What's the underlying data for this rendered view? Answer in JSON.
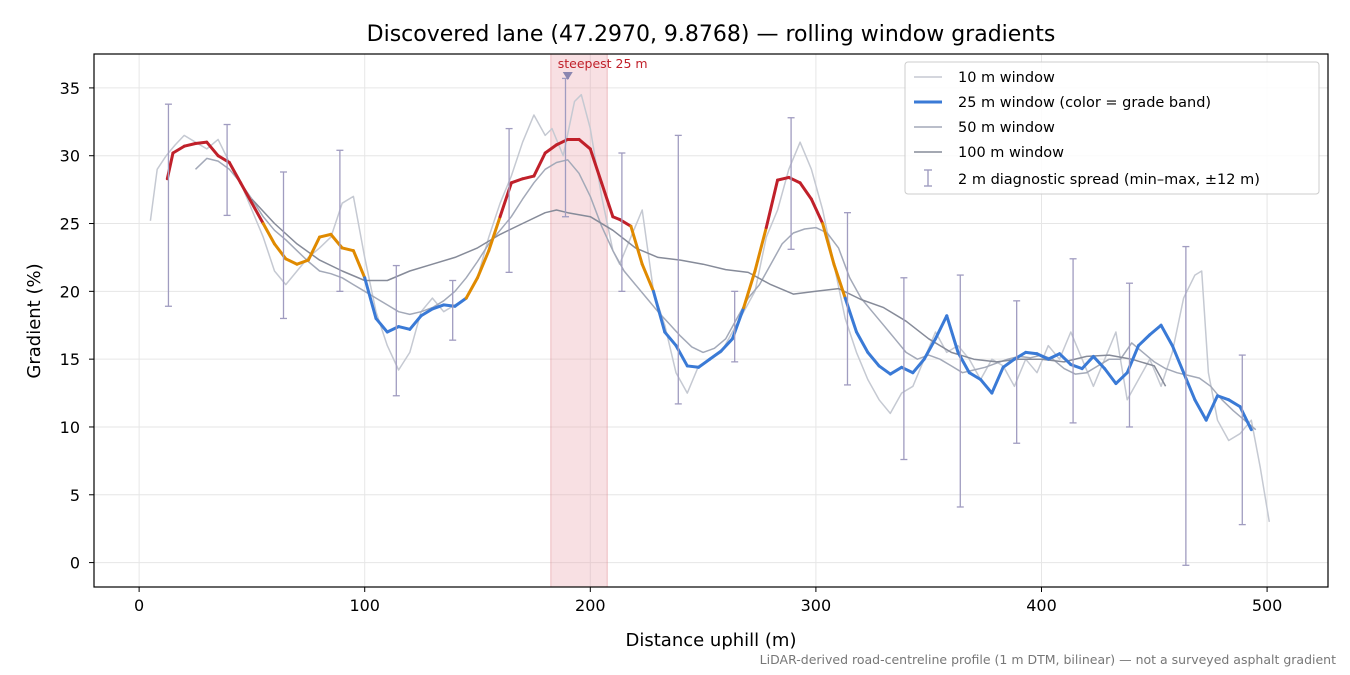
{
  "chart_data": {
    "type": "line",
    "title": "Discovered lane (47.2970, 9.8768) — rolling window gradients",
    "xlabel": "Distance uphill (m)",
    "ylabel": "Gradient (%)",
    "xlim": [
      -20,
      527
    ],
    "ylim": [
      -1.8,
      37.5
    ],
    "xticks": [
      0,
      100,
      200,
      300,
      400,
      500
    ],
    "yticks": [
      0,
      5,
      10,
      15,
      20,
      25,
      30,
      35
    ],
    "grid": true,
    "legend_position": "top-right",
    "footnote": "LiDAR-derived road-centreline profile (1 m DTM, bilinear) — not a surveyed asphalt gradient",
    "annotation": {
      "text": "steepest 25 m",
      "x_range": [
        182.5,
        207.5
      ],
      "peak_x": 190,
      "peak_y": 35.8
    },
    "grade_band_colors": {
      "low": "#3a7ad6",
      "mid": "#e08a00",
      "high": "#c0202a"
    },
    "grade_band_thresholds": [
      20,
      25
    ],
    "series": [
      {
        "name": "10 m window",
        "style": "thin",
        "color": "#c5c9d2",
        "x": [
          5,
          8,
          12,
          16,
          20,
          25,
          30,
          35,
          40,
          45,
          50,
          55,
          60,
          65,
          70,
          75,
          80,
          85,
          90,
          95,
          100,
          105,
          110,
          115,
          120,
          125,
          130,
          135,
          140,
          145,
          150,
          155,
          160,
          165,
          170,
          175,
          180,
          183,
          188,
          193,
          196,
          200,
          205,
          210,
          213,
          218,
          223,
          228,
          233,
          238,
          243,
          248,
          253,
          258,
          263,
          268,
          273,
          278,
          283,
          288,
          293,
          298,
          303,
          308,
          313,
          318,
          323,
          328,
          333,
          338,
          343,
          348,
          353,
          358,
          363,
          368,
          373,
          378,
          383,
          388,
          393,
          398,
          403,
          408,
          413,
          418,
          423,
          428,
          433,
          438,
          443,
          448,
          453,
          458,
          463,
          468,
          471,
          474,
          478,
          483,
          488,
          493,
          497,
          501
        ],
        "values": [
          25.2,
          29.0,
          30.0,
          30.8,
          31.5,
          31.0,
          30.5,
          31.2,
          29.5,
          28.0,
          26.0,
          24.0,
          21.5,
          20.5,
          21.5,
          22.5,
          23.2,
          24.0,
          26.5,
          27.0,
          22.5,
          18.5,
          16.0,
          14.2,
          15.5,
          18.5,
          19.5,
          18.5,
          19.0,
          19.5,
          21.0,
          24.0,
          26.5,
          28.5,
          31.0,
          33.0,
          31.5,
          32.0,
          30.0,
          34.0,
          34.5,
          32.0,
          27.0,
          23.0,
          22.0,
          24.0,
          26.0,
          20.0,
          17.5,
          14.0,
          12.5,
          14.5,
          15.0,
          15.5,
          17.0,
          18.5,
          20.0,
          24.0,
          26.0,
          29.0,
          31.0,
          29.0,
          26.0,
          22.0,
          18.0,
          15.5,
          13.5,
          12.0,
          11.0,
          12.5,
          13.0,
          15.0,
          17.0,
          15.5,
          16.0,
          15.0,
          13.5,
          15.0,
          14.5,
          13.0,
          15.0,
          14.0,
          16.0,
          15.0,
          17.0,
          15.0,
          13.0,
          15.0,
          17.0,
          12.0,
          13.5,
          15.0,
          13.0,
          15.5,
          19.5,
          21.2,
          21.5,
          14.0,
          10.5,
          9.0,
          9.5,
          10.5,
          7.0,
          3.0
        ]
      },
      {
        "name": "25 m window (color = grade band)",
        "style": "thick-banded",
        "color": "#3a7ad6",
        "x": [
          12.5,
          15,
          20,
          25,
          30,
          35,
          40,
          45,
          50,
          55,
          60,
          65,
          70,
          75,
          80,
          85,
          90,
          95,
          100,
          105,
          110,
          115,
          120,
          125,
          130,
          135,
          140,
          145,
          150,
          155,
          160,
          165,
          170,
          175,
          180,
          185,
          190,
          195,
          200,
          205,
          210,
          213,
          218,
          223,
          228,
          233,
          238,
          243,
          248,
          253,
          258,
          263,
          268,
          273,
          278,
          283,
          288,
          293,
          298,
          303,
          308,
          313,
          318,
          323,
          328,
          333,
          338,
          343,
          348,
          353,
          358,
          363,
          368,
          373,
          378,
          383,
          388,
          393,
          398,
          403,
          408,
          413,
          418,
          423,
          428,
          433,
          438,
          443,
          448,
          453,
          458,
          463,
          468,
          473,
          478,
          483,
          488,
          493
        ],
        "values": [
          28.3,
          30.2,
          30.7,
          30.9,
          31.0,
          30.0,
          29.5,
          28.0,
          26.5,
          25.0,
          23.5,
          22.4,
          22.0,
          22.3,
          24.0,
          24.2,
          23.2,
          23.0,
          21.0,
          18.0,
          17.0,
          17.4,
          17.2,
          18.2,
          18.7,
          19.0,
          18.9,
          19.5,
          21.0,
          23.0,
          25.5,
          28.0,
          28.3,
          28.5,
          30.2,
          30.8,
          31.2,
          31.2,
          30.5,
          28.0,
          25.5,
          25.3,
          24.8,
          22.0,
          20.0,
          17.0,
          16.0,
          14.5,
          14.4,
          15.0,
          15.6,
          16.5,
          18.8,
          21.5,
          24.7,
          28.2,
          28.4,
          28.0,
          26.8,
          25.0,
          22.0,
          19.5,
          17.0,
          15.5,
          14.5,
          13.9,
          14.4,
          14.0,
          15.0,
          16.5,
          18.2,
          15.5,
          14.0,
          13.5,
          12.5,
          14.4,
          15.0,
          15.5,
          15.4,
          15.0,
          15.4,
          14.6,
          14.3,
          15.2,
          14.3,
          13.2,
          14.0,
          16.0,
          16.8,
          17.5,
          16.0,
          14.0,
          12.0,
          10.5,
          12.3,
          12.0,
          11.5,
          9.8
        ]
      },
      {
        "name": "50 m window",
        "style": "thin",
        "color": "#a3a9b8",
        "x": [
          25,
          30,
          35,
          40,
          45,
          50,
          55,
          60,
          65,
          70,
          75,
          80,
          85,
          90,
          95,
          100,
          105,
          110,
          115,
          120,
          125,
          130,
          135,
          140,
          145,
          150,
          155,
          160,
          165,
          170,
          175,
          180,
          185,
          190,
          195,
          200,
          205,
          210,
          215,
          220,
          225,
          230,
          235,
          240,
          245,
          250,
          255,
          260,
          265,
          270,
          275,
          280,
          285,
          290,
          295,
          300,
          305,
          310,
          315,
          320,
          325,
          330,
          335,
          340,
          345,
          350,
          355,
          360,
          365,
          370,
          375,
          380,
          385,
          390,
          395,
          400,
          405,
          410,
          415,
          420,
          425,
          430,
          435,
          440,
          445,
          450,
          455,
          460,
          465,
          470,
          475,
          480,
          485,
          490,
          495
        ],
        "values": [
          29.0,
          29.8,
          29.6,
          29.0,
          28.0,
          26.8,
          25.5,
          24.5,
          23.8,
          23.0,
          22.2,
          21.5,
          21.3,
          21.0,
          20.5,
          20.0,
          19.5,
          19.0,
          18.5,
          18.3,
          18.5,
          18.8,
          19.3,
          20.0,
          21.0,
          22.2,
          23.5,
          24.5,
          25.5,
          26.8,
          28.0,
          29.0,
          29.5,
          29.7,
          28.7,
          27.0,
          24.8,
          23.0,
          21.5,
          20.5,
          19.5,
          18.5,
          17.6,
          16.7,
          15.9,
          15.5,
          15.8,
          16.5,
          18.0,
          19.5,
          20.5,
          22.0,
          23.5,
          24.3,
          24.6,
          24.7,
          24.3,
          23.2,
          21.0,
          19.5,
          18.5,
          17.5,
          16.5,
          15.5,
          15.0,
          15.3,
          15.0,
          14.5,
          14.0,
          14.2,
          14.4,
          14.7,
          15.0,
          15.2,
          15.1,
          15.3,
          15.0,
          14.3,
          13.9,
          14.0,
          14.5,
          15.0,
          15.0,
          16.2,
          15.5,
          14.8,
          14.3,
          14.0,
          13.8,
          13.6,
          13.0,
          12.0,
          11.2,
          10.5,
          9.8
        ]
      },
      {
        "name": "100 m window",
        "style": "thin",
        "color": "#868b99",
        "x": [
          50,
          60,
          70,
          80,
          90,
          100,
          110,
          120,
          130,
          140,
          150,
          160,
          170,
          180,
          185,
          190,
          200,
          210,
          220,
          230,
          240,
          250,
          260,
          270,
          280,
          290,
          300,
          310,
          320,
          330,
          340,
          350,
          360,
          370,
          380,
          390,
          400,
          410,
          420,
          430,
          440,
          450,
          455
        ],
        "values": [
          26.8,
          25.0,
          23.5,
          22.3,
          21.5,
          20.8,
          20.8,
          21.5,
          22.0,
          22.5,
          23.2,
          24.2,
          25.0,
          25.8,
          26.0,
          25.8,
          25.5,
          24.5,
          23.2,
          22.5,
          22.3,
          22.0,
          21.6,
          21.4,
          20.5,
          19.8,
          20.0,
          20.2,
          19.4,
          18.8,
          17.8,
          16.5,
          15.5,
          15.0,
          14.8,
          15.0,
          15.0,
          14.8,
          15.2,
          15.3,
          15.0,
          14.5,
          13.0
        ]
      }
    ],
    "error_bars": {
      "name": "2 m diagnostic spread (min–max, ±12 m)",
      "color": "#a09cc0",
      "x": [
        13,
        39,
        64,
        89,
        114,
        139,
        164,
        189,
        214,
        239,
        264,
        289,
        314,
        339,
        364,
        389,
        414,
        439,
        464,
        489
      ],
      "low": [
        18.9,
        25.6,
        18.0,
        20.0,
        12.3,
        16.4,
        21.4,
        25.5,
        20.0,
        11.7,
        14.8,
        23.1,
        13.1,
        7.6,
        4.1,
        8.8,
        10.3,
        10.0,
        -0.2,
        2.8
      ],
      "high": [
        33.8,
        32.3,
        28.8,
        30.4,
        21.9,
        20.8,
        32.0,
        35.7,
        30.2,
        31.5,
        20.0,
        32.8,
        25.8,
        21.0,
        21.2,
        19.3,
        22.4,
        20.6,
        23.3,
        15.3
      ]
    }
  }
}
